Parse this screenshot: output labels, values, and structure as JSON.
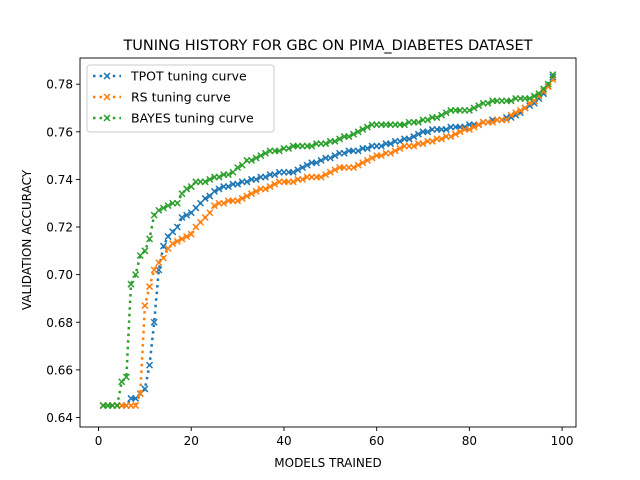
{
  "chart_data": {
    "type": "line",
    "title": "TUNING HISTORY FOR GBC ON PIMA_DIABETES DATASET",
    "xlabel": "MODELS TRAINED",
    "ylabel": "VALIDATION ACCURACY",
    "xlim": [
      -4,
      103
    ],
    "ylim": [
      0.636,
      0.791
    ],
    "xticks": [
      0,
      20,
      40,
      60,
      80,
      100
    ],
    "yticks": [
      0.64,
      0.66,
      0.68,
      0.7,
      0.72,
      0.74,
      0.76,
      0.78
    ],
    "xtick_labels": [
      "0",
      "20",
      "40",
      "60",
      "80",
      "100"
    ],
    "ytick_labels": [
      "0.64",
      "0.66",
      "0.68",
      "0.70",
      "0.72",
      "0.74",
      "0.76",
      "0.78"
    ],
    "grid": false,
    "legend_position": "top-left",
    "series": [
      {
        "name": "TPOT tuning curve",
        "color": "#1f77b4",
        "marker": "x",
        "line_style": "dotted",
        "x": [
          1,
          2,
          3,
          4,
          5,
          6,
          7,
          8,
          9,
          10,
          11,
          12,
          13,
          14,
          15,
          16,
          17,
          18,
          19,
          20,
          21,
          22,
          23,
          24,
          25,
          26,
          27,
          28,
          29,
          30,
          31,
          32,
          33,
          34,
          35,
          36,
          37,
          38,
          39,
          40,
          41,
          42,
          43,
          44,
          45,
          46,
          47,
          48,
          49,
          50,
          51,
          52,
          53,
          54,
          55,
          56,
          57,
          58,
          59,
          60,
          61,
          62,
          63,
          64,
          65,
          66,
          67,
          68,
          69,
          70,
          71,
          72,
          73,
          74,
          75,
          76,
          77,
          78,
          79,
          80,
          81,
          82,
          83,
          84,
          85,
          86,
          87,
          88,
          89,
          90,
          91,
          92,
          93,
          94,
          95,
          96,
          97,
          98
        ],
        "y": [
          0.645,
          0.645,
          0.645,
          0.645,
          0.645,
          0.645,
          0.648,
          0.648,
          0.65,
          0.652,
          0.662,
          0.68,
          0.702,
          0.712,
          0.716,
          0.718,
          0.72,
          0.724,
          0.725,
          0.726,
          0.728,
          0.73,
          0.732,
          0.733,
          0.735,
          0.736,
          0.737,
          0.737,
          0.738,
          0.738,
          0.739,
          0.739,
          0.74,
          0.74,
          0.741,
          0.741,
          0.742,
          0.742,
          0.743,
          0.743,
          0.743,
          0.743,
          0.744,
          0.745,
          0.746,
          0.747,
          0.747,
          0.748,
          0.749,
          0.749,
          0.75,
          0.751,
          0.751,
          0.752,
          0.752,
          0.752,
          0.753,
          0.753,
          0.754,
          0.754,
          0.754,
          0.755,
          0.755,
          0.756,
          0.756,
          0.757,
          0.757,
          0.758,
          0.759,
          0.76,
          0.76,
          0.761,
          0.761,
          0.761,
          0.761,
          0.762,
          0.762,
          0.762,
          0.762,
          0.763,
          0.763,
          0.763,
          0.764,
          0.764,
          0.765,
          0.765,
          0.765,
          0.766,
          0.766,
          0.767,
          0.768,
          0.77,
          0.771,
          0.772,
          0.774,
          0.776,
          0.779,
          0.783
        ]
      },
      {
        "name": "RS tuning curve",
        "color": "#ff7f0e",
        "marker": "x",
        "line_style": "dotted",
        "x": [
          1,
          2,
          3,
          4,
          5,
          6,
          7,
          8,
          9,
          10,
          11,
          12,
          13,
          14,
          15,
          16,
          17,
          18,
          19,
          20,
          21,
          22,
          23,
          24,
          25,
          26,
          27,
          28,
          29,
          30,
          31,
          32,
          33,
          34,
          35,
          36,
          37,
          38,
          39,
          40,
          41,
          42,
          43,
          44,
          45,
          46,
          47,
          48,
          49,
          50,
          51,
          52,
          53,
          54,
          55,
          56,
          57,
          58,
          59,
          60,
          61,
          62,
          63,
          64,
          65,
          66,
          67,
          68,
          69,
          70,
          71,
          72,
          73,
          74,
          75,
          76,
          77,
          78,
          79,
          80,
          81,
          82,
          83,
          84,
          85,
          86,
          87,
          88,
          89,
          90,
          91,
          92,
          93,
          94,
          95,
          96,
          97,
          98
        ],
        "y": [
          0.645,
          0.645,
          0.645,
          0.645,
          0.645,
          0.645,
          0.645,
          0.645,
          0.65,
          0.687,
          0.695,
          0.702,
          0.705,
          0.707,
          0.711,
          0.713,
          0.714,
          0.715,
          0.716,
          0.717,
          0.72,
          0.722,
          0.724,
          0.726,
          0.729,
          0.73,
          0.73,
          0.731,
          0.731,
          0.731,
          0.732,
          0.733,
          0.734,
          0.735,
          0.736,
          0.736,
          0.737,
          0.738,
          0.739,
          0.739,
          0.739,
          0.739,
          0.74,
          0.74,
          0.741,
          0.741,
          0.741,
          0.741,
          0.742,
          0.743,
          0.744,
          0.745,
          0.745,
          0.745,
          0.745,
          0.746,
          0.747,
          0.748,
          0.749,
          0.75,
          0.75,
          0.751,
          0.751,
          0.752,
          0.753,
          0.754,
          0.754,
          0.754,
          0.755,
          0.755,
          0.756,
          0.756,
          0.757,
          0.757,
          0.758,
          0.758,
          0.759,
          0.76,
          0.761,
          0.761,
          0.762,
          0.763,
          0.764,
          0.764,
          0.764,
          0.765,
          0.765,
          0.765,
          0.767,
          0.768,
          0.769,
          0.77,
          0.772,
          0.773,
          0.775,
          0.777,
          0.779,
          0.782
        ]
      },
      {
        "name": "BAYES tuning curve",
        "color": "#2ca02c",
        "marker": "x",
        "line_style": "dotted",
        "x": [
          1,
          2,
          3,
          4,
          5,
          6,
          7,
          8,
          9,
          10,
          11,
          12,
          13,
          14,
          15,
          16,
          17,
          18,
          19,
          20,
          21,
          22,
          23,
          24,
          25,
          26,
          27,
          28,
          29,
          30,
          31,
          32,
          33,
          34,
          35,
          36,
          37,
          38,
          39,
          40,
          41,
          42,
          43,
          44,
          45,
          46,
          47,
          48,
          49,
          50,
          51,
          52,
          53,
          54,
          55,
          56,
          57,
          58,
          59,
          60,
          61,
          62,
          63,
          64,
          65,
          66,
          67,
          68,
          69,
          70,
          71,
          72,
          73,
          74,
          75,
          76,
          77,
          78,
          79,
          80,
          81,
          82,
          83,
          84,
          85,
          86,
          87,
          88,
          89,
          90,
          91,
          92,
          93,
          94,
          95,
          96,
          97,
          98
        ],
        "y": [
          0.645,
          0.645,
          0.645,
          0.645,
          0.655,
          0.657,
          0.696,
          0.7,
          0.708,
          0.71,
          0.715,
          0.725,
          0.727,
          0.728,
          0.729,
          0.73,
          0.73,
          0.734,
          0.736,
          0.737,
          0.739,
          0.739,
          0.739,
          0.74,
          0.741,
          0.741,
          0.742,
          0.742,
          0.743,
          0.745,
          0.746,
          0.748,
          0.748,
          0.749,
          0.75,
          0.751,
          0.752,
          0.752,
          0.752,
          0.753,
          0.753,
          0.754,
          0.754,
          0.754,
          0.754,
          0.754,
          0.755,
          0.755,
          0.755,
          0.756,
          0.756,
          0.757,
          0.758,
          0.758,
          0.759,
          0.76,
          0.761,
          0.762,
          0.763,
          0.763,
          0.763,
          0.763,
          0.763,
          0.763,
          0.763,
          0.763,
          0.764,
          0.764,
          0.764,
          0.765,
          0.765,
          0.766,
          0.766,
          0.767,
          0.768,
          0.769,
          0.769,
          0.769,
          0.769,
          0.769,
          0.77,
          0.771,
          0.772,
          0.772,
          0.773,
          0.773,
          0.773,
          0.773,
          0.773,
          0.774,
          0.774,
          0.774,
          0.774,
          0.775,
          0.776,
          0.778,
          0.78,
          0.784
        ]
      }
    ]
  }
}
